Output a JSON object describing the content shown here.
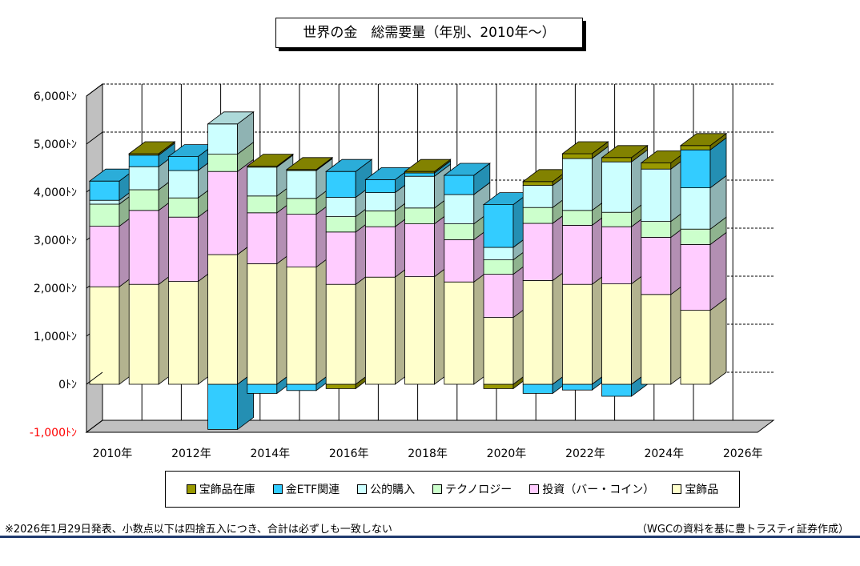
{
  "chart_data": {
    "type": "bar",
    "stacked": true,
    "title": "世界の金　総需要量（年別、2010年～）",
    "ylim": [
      -1000,
      6000
    ],
    "yticks": [
      -1000,
      0,
      1000,
      2000,
      3000,
      4000,
      5000,
      6000
    ],
    "ytick_labels": [
      "-1,000ﾄﾝ",
      "0ﾄﾝ",
      "1,000ﾄﾝ",
      "2,000ﾄﾝ",
      "3,000ﾄﾝ",
      "4,000ﾄﾝ",
      "5,000ﾄﾝ",
      "6,000ﾄﾝ"
    ],
    "xtick_labels": [
      "2010年",
      "2012年",
      "2014年",
      "2016年",
      "2018年",
      "2020年",
      "2022年",
      "2024年",
      "2026年"
    ],
    "categories": [
      "2010",
      "2011",
      "2012",
      "2013",
      "2014",
      "2015",
      "2016",
      "2017",
      "2018",
      "2019",
      "2020",
      "2021",
      "2022",
      "2023",
      "2024",
      "2025"
    ],
    "series": [
      {
        "name": "宝飾品",
        "color": "#ffffcc",
        "values": [
          2030,
          2080,
          2140,
          2700,
          2510,
          2440,
          2080,
          2230,
          2240,
          2130,
          1390,
          2160,
          2080,
          2090,
          1870,
          1540
        ]
      },
      {
        "name": "投資（バー・コイン）",
        "color": "#ffccff",
        "values": [
          1260,
          1540,
          1340,
          1730,
          1060,
          1100,
          1090,
          1050,
          1100,
          880,
          900,
          1190,
          1230,
          1190,
          1190,
          1370
        ]
      },
      {
        "name": "テクノロジー",
        "color": "#ccffcc",
        "values": [
          460,
          430,
          400,
          360,
          350,
          330,
          320,
          330,
          330,
          330,
          300,
          330,
          310,
          300,
          330,
          320
        ]
      },
      {
        "name": "公的購入",
        "color": "#ccffff",
        "values": [
          80,
          480,
          570,
          630,
          600,
          580,
          400,
          380,
          660,
          610,
          260,
          460,
          1080,
          1050,
          1090,
          860
        ]
      },
      {
        "name": "金ETF関連",
        "color": "#33ccff",
        "values": [
          400,
          240,
          290,
          -940,
          -190,
          -130,
          540,
          270,
          70,
          400,
          890,
          -190,
          -120,
          -250,
          0,
          790
        ]
      },
      {
        "name": "宝飾品在庫",
        "color": "#999900",
        "values": [
          0,
          30,
          0,
          0,
          20,
          20,
          -90,
          0,
          30,
          0,
          -90,
          80,
          100,
          90,
          130,
          90
        ]
      }
    ],
    "legend_order": [
      "宝飾品在庫",
      "金ETF関連",
      "公的購入",
      "テクノロジー",
      "投資（バー・コイン）",
      "宝飾品"
    ],
    "legend_position": "bottom",
    "grid": true
  },
  "footnote": "※2026年1月29日発表、小数点以下は四捨五入につき、合計は必ずしも一致しない",
  "source": "（WGCの資料を基に豊トラスティ証券作成）"
}
